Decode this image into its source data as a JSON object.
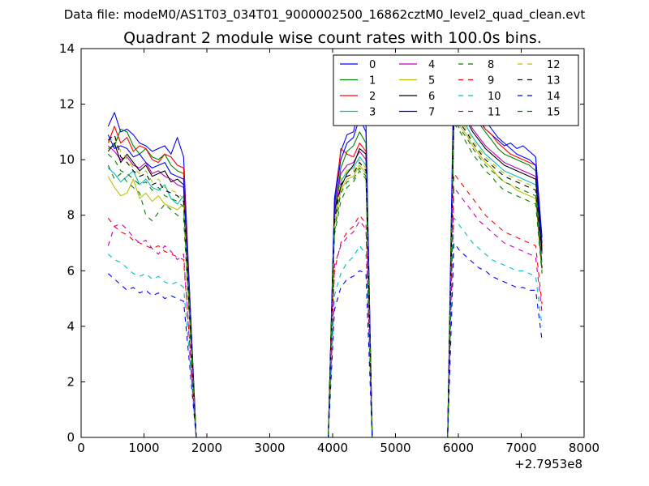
{
  "figure": {
    "suptitle": "Data file: modeM0/AS1T03_034T01_9000002500_16862cztM0_level2_quad_clean.evt"
  },
  "chart_data": {
    "type": "line",
    "title": "Quadrant 2 module wise count rates with 100.0s bins.",
    "xlabel": "",
    "ylabel": "",
    "x_offset_label": "+2.7953e8",
    "xlim": [
      0,
      8000
    ],
    "ylim": [
      0,
      14
    ],
    "xticks": [
      0,
      1000,
      2000,
      3000,
      4000,
      5000,
      6000,
      7000,
      8000
    ],
    "yticks": [
      0,
      2,
      4,
      6,
      8,
      10,
      12,
      14
    ],
    "grid": false,
    "legend_position": "top-right",
    "x": [
      430,
      530,
      630,
      730,
      830,
      930,
      1030,
      1130,
      1230,
      1330,
      1430,
      1530,
      1630,
      1730,
      1830,
      1930,
      2030,
      2130,
      2230,
      2330,
      2430,
      2530,
      2630,
      2730,
      2830,
      2930,
      3030,
      3130,
      3230,
      3330,
      3430,
      3530,
      3630,
      3730,
      3830,
      3930,
      4030,
      4130,
      4230,
      4330,
      4430,
      4530,
      4630,
      4730,
      4830,
      4930,
      5030,
      5130,
      5230,
      5330,
      5430,
      5530,
      5630,
      5730,
      5830,
      5930,
      6030,
      6130,
      6230,
      6330,
      6430,
      6530,
      6630,
      6730,
      6830,
      6930,
      7030,
      7130,
      7230,
      7330
    ],
    "series": [
      {
        "name": "0",
        "color": "#0000ff",
        "dash": "solid",
        "values": [
          11.2,
          11.7,
          11.0,
          11.1,
          10.9,
          10.6,
          10.5,
          10.3,
          10.4,
          10.5,
          10.2,
          10.8,
          10.1,
          5.0,
          0,
          0,
          0,
          0,
          0,
          0,
          0,
          0,
          0,
          0,
          0,
          0,
          0,
          0,
          0,
          0,
          0,
          0,
          0,
          0,
          0,
          0,
          8.6,
          10.3,
          10.9,
          11.0,
          11.9,
          11.3,
          0,
          0,
          0,
          0,
          0,
          0,
          0,
          0,
          0,
          0,
          0,
          0,
          0,
          12.2,
          12.4,
          12.0,
          11.9,
          11.4,
          11.1,
          10.9,
          10.7,
          10.5,
          10.6,
          10.4,
          10.5,
          10.3,
          10.1,
          7.2
        ]
      },
      {
        "name": "1",
        "color": "#008000",
        "dash": "solid",
        "values": [
          10.4,
          10.5,
          11.1,
          11.0,
          10.5,
          10.2,
          10.4,
          10.1,
          10.0,
          10.2,
          9.8,
          9.6,
          9.5,
          4.9,
          0,
          0,
          0,
          0,
          0,
          0,
          0,
          0,
          0,
          0,
          0,
          0,
          0,
          0,
          0,
          0,
          0,
          0,
          0,
          0,
          0,
          0,
          8.1,
          9.7,
          10.3,
          10.5,
          11.0,
          10.6,
          0,
          0,
          0,
          0,
          0,
          0,
          0,
          0,
          0,
          0,
          0,
          0,
          0,
          12.7,
          12.4,
          12.0,
          11.6,
          11.3,
          11.0,
          10.7,
          10.4,
          10.2,
          10.1,
          10.0,
          9.9,
          9.8,
          9.6,
          6.8
        ]
      },
      {
        "name": "2",
        "color": "#ff0000",
        "dash": "solid",
        "values": [
          10.6,
          11.2,
          10.6,
          10.8,
          10.3,
          10.5,
          10.4,
          10.0,
          9.9,
          10.2,
          10.1,
          9.8,
          9.7,
          4.8,
          0,
          0,
          0,
          0,
          0,
          0,
          0,
          0,
          0,
          0,
          0,
          0,
          0,
          0,
          0,
          0,
          0,
          0,
          0,
          0,
          0,
          0,
          8.3,
          10.4,
          10.2,
          10.1,
          10.6,
          10.3,
          0,
          0,
          0,
          0,
          0,
          0,
          0,
          0,
          0,
          0,
          0,
          0,
          0,
          12.9,
          12.6,
          12.3,
          11.8,
          11.5,
          11.1,
          10.9,
          10.6,
          10.4,
          10.2,
          10.1,
          10.0,
          9.9,
          9.8,
          6.9
        ]
      },
      {
        "name": "3",
        "color": "#00bfbf",
        "dash": "solid",
        "values": [
          9.7,
          9.5,
          9.2,
          9.4,
          9.6,
          9.1,
          9.3,
          9.0,
          8.9,
          9.1,
          8.6,
          8.4,
          8.7,
          4.2,
          0,
          0,
          0,
          0,
          0,
          0,
          0,
          0,
          0,
          0,
          0,
          0,
          0,
          0,
          0,
          0,
          0,
          0,
          0,
          0,
          0,
          0,
          7.9,
          9.2,
          9.6,
          9.7,
          10.1,
          9.8,
          0,
          0,
          0,
          0,
          0,
          0,
          0,
          0,
          0,
          0,
          0,
          0,
          0,
          11.9,
          11.5,
          11.2,
          10.8,
          10.5,
          10.2,
          10.0,
          9.8,
          9.6,
          9.5,
          9.4,
          9.3,
          9.2,
          9.1,
          6.3
        ]
      },
      {
        "name": "4",
        "color": "#bf00bf",
        "dash": "solid",
        "values": [
          10.5,
          10.3,
          10.0,
          10.1,
          9.8,
          9.7,
          9.9,
          9.5,
          9.6,
          9.4,
          9.3,
          9.1,
          9.0,
          4.5,
          0,
          0,
          0,
          0,
          0,
          0,
          0,
          0,
          0,
          0,
          0,
          0,
          0,
          0,
          0,
          0,
          0,
          0,
          0,
          0,
          0,
          0,
          8.0,
          9.5,
          9.8,
          9.9,
          10.3,
          10.0,
          0,
          0,
          0,
          0,
          0,
          0,
          0,
          0,
          0,
          0,
          0,
          0,
          0,
          12.1,
          11.8,
          11.5,
          11.1,
          10.8,
          10.5,
          10.3,
          10.1,
          9.9,
          9.8,
          9.7,
          9.6,
          9.5,
          9.4,
          6.6
        ]
      },
      {
        "name": "5",
        "color": "#bfbf00",
        "dash": "solid",
        "values": [
          9.4,
          9.0,
          8.7,
          8.8,
          9.3,
          8.6,
          8.8,
          8.5,
          8.7,
          8.4,
          8.3,
          8.2,
          8.4,
          4.1,
          0,
          0,
          0,
          0,
          0,
          0,
          0,
          0,
          0,
          0,
          0,
          0,
          0,
          0,
          0,
          0,
          0,
          0,
          0,
          0,
          0,
          0,
          7.6,
          8.9,
          9.3,
          9.4,
          9.8,
          9.5,
          0,
          0,
          0,
          0,
          0,
          0,
          0,
          0,
          0,
          0,
          0,
          0,
          0,
          11.5,
          11.2,
          10.9,
          10.5,
          10.2,
          9.9,
          9.7,
          9.4,
          9.2,
          9.1,
          8.9,
          8.8,
          8.7,
          8.6,
          6.0
        ]
      },
      {
        "name": "6",
        "color": "#000000",
        "dash": "solid",
        "values": [
          10.3,
          10.6,
          9.9,
          10.2,
          9.9,
          9.6,
          9.8,
          9.4,
          9.5,
          9.6,
          9.2,
          9.3,
          9.1,
          4.6,
          0,
          0,
          0,
          0,
          0,
          0,
          0,
          0,
          0,
          0,
          0,
          0,
          0,
          0,
          0,
          0,
          0,
          0,
          0,
          0,
          0,
          0,
          8.2,
          9.0,
          9.5,
          9.8,
          10.4,
          10.2,
          0,
          0,
          0,
          0,
          0,
          0,
          0,
          0,
          0,
          0,
          0,
          0,
          0,
          12.0,
          11.7,
          11.4,
          11.0,
          10.7,
          10.4,
          10.2,
          10.0,
          9.8,
          9.7,
          9.6,
          9.5,
          9.4,
          9.3,
          6.7
        ]
      },
      {
        "name": "7",
        "color": "#0000ff",
        "dash": "solid",
        "values": [
          10.9,
          10.4,
          10.5,
          10.4,
          10.1,
          10.2,
          9.9,
          9.7,
          9.8,
          9.9,
          9.5,
          9.4,
          9.3,
          4.7,
          0,
          0,
          0,
          0,
          0,
          0,
          0,
          0,
          0,
          0,
          0,
          0,
          0,
          0,
          0,
          0,
          0,
          0,
          0,
          0,
          0,
          0,
          8.4,
          10.0,
          10.6,
          10.8,
          11.5,
          11.0,
          0,
          0,
          0,
          0,
          0,
          0,
          0,
          0,
          0,
          0,
          0,
          0,
          0,
          13.6,
          13.0,
          12.6,
          12.1,
          11.8,
          11.4,
          11.1,
          10.8,
          10.6,
          10.4,
          10.2,
          10.1,
          10.0,
          9.8,
          7.0
        ]
      },
      {
        "name": "8",
        "color": "#008000",
        "dash": "dashed",
        "values": [
          9.8,
          9.3,
          9.5,
          9.2,
          9.0,
          8.8,
          8.0,
          7.8,
          8.1,
          8.4,
          8.2,
          8.0,
          7.9,
          3.9,
          0,
          0,
          0,
          0,
          0,
          0,
          0,
          0,
          0,
          0,
          0,
          0,
          0,
          0,
          0,
          0,
          0,
          0,
          0,
          0,
          0,
          0,
          7.3,
          8.5,
          9.0,
          9.2,
          9.6,
          9.3,
          0,
          0,
          0,
          0,
          0,
          0,
          0,
          0,
          0,
          0,
          0,
          0,
          0,
          11.3,
          11.0,
          10.6,
          10.2,
          9.9,
          9.6,
          9.4,
          9.1,
          8.9,
          8.8,
          8.7,
          8.6,
          8.5,
          8.4,
          5.9
        ]
      },
      {
        "name": "9",
        "color": "#ff0000",
        "dash": "dashed",
        "values": [
          7.9,
          7.6,
          7.4,
          7.3,
          7.1,
          7.0,
          6.9,
          6.8,
          6.9,
          6.7,
          6.6,
          6.5,
          6.4,
          3.3,
          0,
          0,
          0,
          0,
          0,
          0,
          0,
          0,
          0,
          0,
          0,
          0,
          0,
          0,
          0,
          0,
          0,
          0,
          0,
          0,
          0,
          0,
          6.0,
          7.0,
          7.4,
          7.6,
          8.0,
          7.7,
          0,
          0,
          0,
          0,
          0,
          0,
          0,
          0,
          0,
          0,
          0,
          0,
          0,
          9.5,
          9.2,
          8.9,
          8.6,
          8.3,
          8.0,
          7.8,
          7.6,
          7.4,
          7.3,
          7.2,
          7.1,
          7.0,
          6.9,
          4.8
        ]
      },
      {
        "name": "10",
        "color": "#00bfbf",
        "dash": "dashed",
        "values": [
          6.6,
          6.4,
          6.3,
          6.1,
          5.9,
          5.8,
          5.9,
          5.7,
          5.8,
          5.6,
          5.5,
          5.6,
          5.4,
          2.8,
          0,
          0,
          0,
          0,
          0,
          0,
          0,
          0,
          0,
          0,
          0,
          0,
          0,
          0,
          0,
          0,
          0,
          0,
          0,
          0,
          0,
          0,
          5.1,
          5.9,
          6.3,
          6.5,
          6.9,
          6.6,
          0,
          0,
          0,
          0,
          0,
          0,
          0,
          0,
          0,
          0,
          0,
          0,
          0,
          7.9,
          7.6,
          7.3,
          7.0,
          6.8,
          6.6,
          6.4,
          6.3,
          6.2,
          6.1,
          6.0,
          6.0,
          5.9,
          5.8,
          4.0
        ]
      },
      {
        "name": "11",
        "color": "#bf00bf",
        "dash": "dashed",
        "values": [
          6.9,
          7.6,
          7.7,
          7.5,
          7.2,
          7.0,
          7.1,
          6.8,
          6.6,
          6.9,
          6.7,
          6.4,
          6.6,
          3.2,
          0,
          0,
          0,
          0,
          0,
          0,
          0,
          0,
          0,
          0,
          0,
          0,
          0,
          0,
          0,
          0,
          0,
          0,
          0,
          0,
          0,
          0,
          6.2,
          6.9,
          7.2,
          7.4,
          7.8,
          7.5,
          0,
          0,
          0,
          0,
          0,
          0,
          0,
          0,
          0,
          0,
          0,
          0,
          0,
          9.0,
          8.7,
          8.4,
          8.1,
          7.8,
          7.6,
          7.4,
          7.2,
          7.0,
          6.9,
          6.8,
          6.7,
          6.6,
          6.5,
          4.5
        ]
      },
      {
        "name": "12",
        "color": "#bfbf00",
        "dash": "dashed",
        "values": [
          10.6,
          10.8,
          10.3,
          10.0,
          9.7,
          9.5,
          9.6,
          9.2,
          9.3,
          9.0,
          8.9,
          8.8,
          8.6,
          4.3,
          0,
          0,
          0,
          0,
          0,
          0,
          0,
          0,
          0,
          0,
          0,
          0,
          0,
          0,
          0,
          0,
          0,
          0,
          0,
          0,
          0,
          0,
          7.7,
          9.3,
          9.6,
          9.6,
          10.0,
          9.7,
          0,
          0,
          0,
          0,
          0,
          0,
          0,
          0,
          0,
          0,
          0,
          0,
          0,
          11.7,
          11.4,
          11.1,
          10.7,
          10.4,
          10.1,
          9.9,
          9.7,
          9.5,
          9.4,
          9.3,
          9.2,
          9.1,
          9.0,
          6.2
        ]
      },
      {
        "name": "13",
        "color": "#000000",
        "dash": "dashed",
        "values": [
          10.7,
          10.9,
          10.1,
          9.9,
          9.6,
          9.4,
          9.5,
          9.1,
          9.2,
          8.9,
          8.8,
          8.7,
          8.5,
          4.2,
          0,
          0,
          0,
          0,
          0,
          0,
          0,
          0,
          0,
          0,
          0,
          0,
          0,
          0,
          0,
          0,
          0,
          0,
          0,
          0,
          0,
          0,
          7.8,
          9.1,
          9.4,
          9.5,
          9.9,
          9.6,
          0,
          0,
          0,
          0,
          0,
          0,
          0,
          0,
          0,
          0,
          0,
          0,
          0,
          11.6,
          11.3,
          11.0,
          10.6,
          10.3,
          10.0,
          9.8,
          9.6,
          9.4,
          9.3,
          9.2,
          9.1,
          9.0,
          8.9,
          6.1
        ]
      },
      {
        "name": "14",
        "color": "#0000ff",
        "dash": "dashed",
        "values": [
          5.9,
          5.7,
          5.5,
          5.3,
          5.4,
          5.2,
          5.3,
          5.1,
          5.2,
          5.0,
          5.1,
          5.0,
          4.9,
          2.5,
          0,
          0,
          0,
          0,
          0,
          0,
          0,
          0,
          0,
          0,
          0,
          0,
          0,
          0,
          0,
          0,
          0,
          0,
          0,
          0,
          0,
          0,
          4.6,
          5.4,
          5.7,
          5.8,
          6.0,
          5.9,
          0,
          0,
          0,
          0,
          0,
          0,
          0,
          0,
          0,
          0,
          0,
          0,
          0,
          7.0,
          6.7,
          6.5,
          6.3,
          6.1,
          6.0,
          5.8,
          5.7,
          5.6,
          5.5,
          5.4,
          5.4,
          5.3,
          5.3,
          3.5
        ]
      },
      {
        "name": "15",
        "color": "#008000",
        "dash": "dashed",
        "values": [
          10.2,
          10.0,
          9.6,
          9.5,
          9.3,
          9.1,
          9.2,
          8.9,
          9.0,
          8.7,
          8.6,
          8.5,
          8.3,
          4.1,
          0,
          0,
          0,
          0,
          0,
          0,
          0,
          0,
          0,
          0,
          0,
          0,
          0,
          0,
          0,
          0,
          0,
          0,
          0,
          0,
          0,
          0,
          7.4,
          8.8,
          9.2,
          9.3,
          9.7,
          9.4,
          0,
          0,
          0,
          0,
          0,
          0,
          0,
          0,
          0,
          0,
          0,
          0,
          0,
          11.4,
          11.1,
          10.8,
          10.4,
          10.1,
          9.8,
          9.6,
          9.4,
          9.2,
          9.1,
          9.0,
          8.9,
          8.8,
          8.7,
          6.0
        ]
      }
    ]
  }
}
